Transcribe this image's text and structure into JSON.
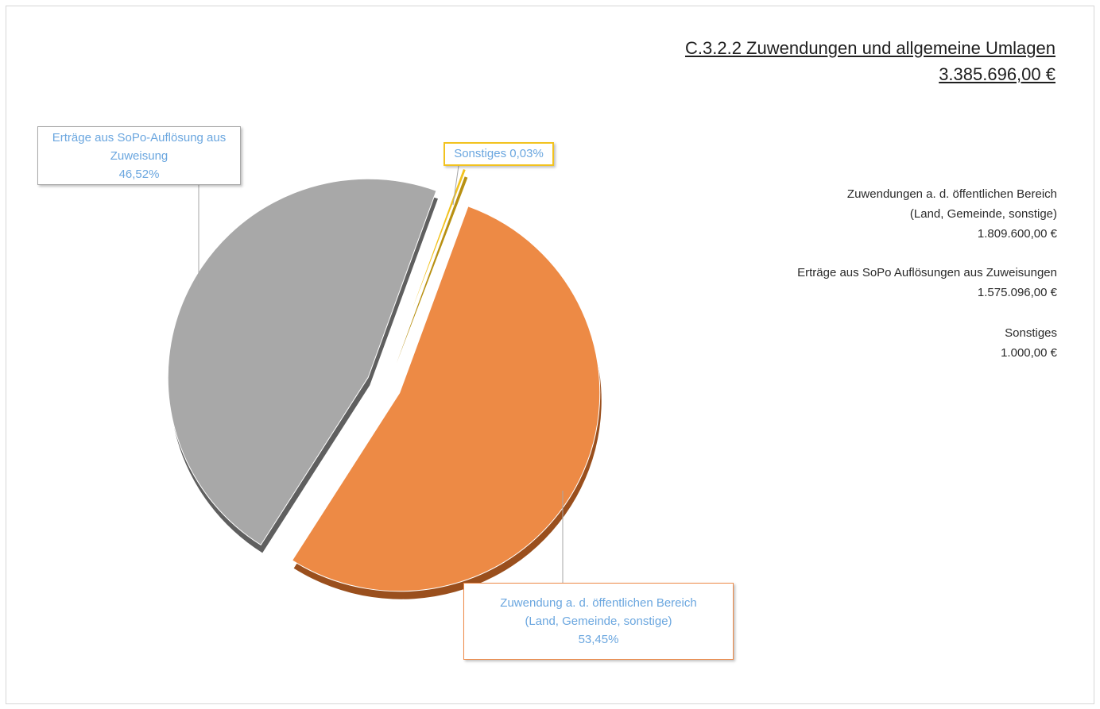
{
  "chart_data": {
    "type": "pie",
    "title": "C.3.2.2 Zuwendungen und allgemeine Umlagen",
    "total": "3.385.696,00 €",
    "slices": [
      {
        "label_lines": [
          "Zuwendung a. d. öffentlichen Bereich",
          "(Land, Gemeinde, sonstige)"
        ],
        "percent_label": "53,45%",
        "value": 1809600.0,
        "percent": 53.45,
        "color": "#ED8A45"
      },
      {
        "label_lines": [
          "Erträge aus SoPo-Auflösung aus",
          "Zuweisung"
        ],
        "percent_label": "46,52%",
        "value": 1575096.0,
        "percent": 46.52,
        "color": "#A8A8A8"
      },
      {
        "label_lines": [
          "Sonstiges 0,03%"
        ],
        "percent_label": "",
        "value": 1000.0,
        "percent": 0.03,
        "color": "#F2C21E"
      }
    ],
    "legend_placement": "right",
    "exploded": true
  },
  "summary": [
    {
      "lines": [
        "Zuwendungen a. d. öffentlichen Bereich",
        "(Land, Gemeinde, sonstige)"
      ],
      "amount": "1.809.600,00 €"
    },
    {
      "lines": [
        "Erträge aus SoPo Auflösungen aus Zuweisungen"
      ],
      "amount": "1.575.096,00 €"
    },
    {
      "lines": [
        "Sonstiges"
      ],
      "amount": "1.000,00 €"
    }
  ]
}
